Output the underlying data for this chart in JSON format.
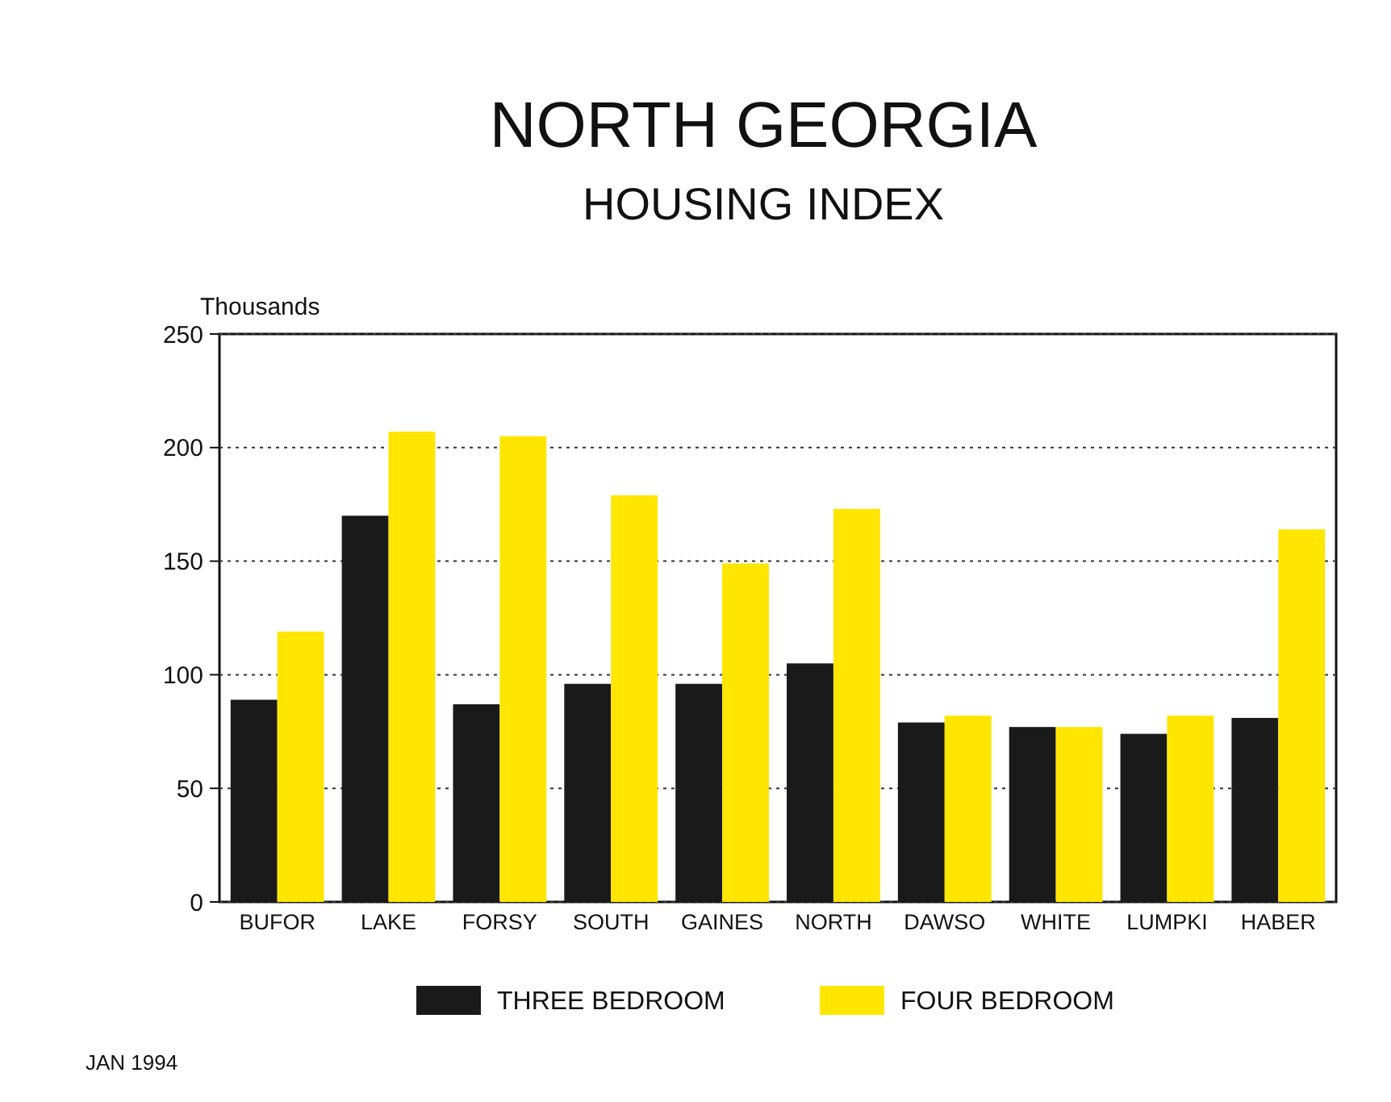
{
  "chart_data": {
    "type": "bar",
    "title": "NORTH GEORGIA",
    "subtitle": "HOUSING INDEX",
    "ylabel": "Thousands",
    "categories": [
      "BUFOR",
      "LAKE",
      "FORSY",
      "SOUTH",
      "GAINES",
      "NORTH",
      "DAWSO",
      "WHITE",
      "LUMPKI",
      "HABER"
    ],
    "series": [
      {
        "name": "THREE BEDROOM",
        "color": "#1a1a1a",
        "values": [
          89,
          170,
          87,
          96,
          96,
          105,
          79,
          77,
          74,
          81
        ]
      },
      {
        "name": "FOUR BEDROOM",
        "color": "#ffe600",
        "values": [
          119,
          207,
          205,
          179,
          149,
          173,
          82,
          77,
          82,
          164
        ]
      }
    ],
    "ylim": [
      0,
      250
    ],
    "yticks": [
      0,
      50,
      100,
      150,
      200,
      250
    ],
    "grid": "y",
    "legend": "bottom",
    "annotations": [
      "JAN 1994"
    ]
  }
}
